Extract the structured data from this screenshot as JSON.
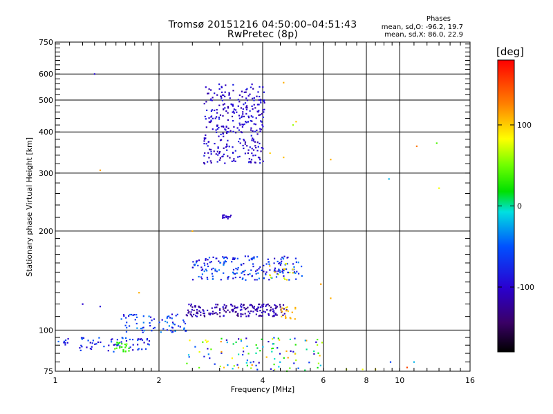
{
  "title_line1": "Tromsø 20151216 04:50:00–04:51:43",
  "title_line2": "RwPretec (8p)",
  "phases": {
    "title": "Phases",
    "line1": "mean, sd,O: -96.2, 19.7",
    "line2": "mean, sd,X:  86.0, 22.9"
  },
  "colorbar": {
    "title": "[deg]",
    "ticks": [
      {
        "label": "100",
        "value": 100
      },
      {
        "label": "0",
        "value": 0
      },
      {
        "label": "-100",
        "value": -100
      }
    ],
    "range": [
      -180,
      180
    ]
  },
  "chart_data": {
    "type": "scatter",
    "xlabel": "Frequency [MHz]",
    "ylabel": "Stationary phase Virtual Height [km]",
    "xscale": "log",
    "yscale": "log",
    "xlim": [
      1,
      16
    ],
    "ylim": [
      75,
      750
    ],
    "xticks": [
      {
        "label": "1",
        "value": 1
      },
      {
        "label": "2",
        "value": 2
      },
      {
        "label": "4",
        "value": 4
      },
      {
        "label": "6",
        "value": 6
      },
      {
        "label": "8",
        "value": 8
      },
      {
        "label": "10",
        "value": 10
      },
      {
        "label": "16",
        "value": 16
      }
    ],
    "yticks": [
      {
        "label": "75",
        "value": 75
      },
      {
        "label": "100",
        "value": 100
      },
      {
        "label": "200",
        "value": 200
      },
      {
        "label": "300",
        "value": 300
      },
      {
        "label": "400",
        "value": 400
      },
      {
        "label": "500",
        "value": 500
      },
      {
        "label": "600",
        "value": 600
      },
      {
        "label": "750",
        "value": 750
      }
    ],
    "grid": true,
    "color_variable": "phase [deg]",
    "clusters": [
      {
        "x_range": [
          2.7,
          4.05
        ],
        "y_range": [
          320,
          560
        ],
        "phase_range": [
          -120,
          -80
        ],
        "count": 320
      },
      {
        "x_range": [
          3.05,
          3.25
        ],
        "y_range": [
          218,
          224
        ],
        "phase_range": [
          -115,
          -95
        ],
        "count": 14
      },
      {
        "x_range": [
          2.5,
          5.2
        ],
        "y_range": [
          142,
          168
        ],
        "phase_range": [
          -110,
          -30
        ],
        "count": 190
      },
      {
        "x_range": [
          4.1,
          4.9
        ],
        "y_range": [
          142,
          160
        ],
        "phase_range": [
          60,
          110
        ],
        "count": 16
      },
      {
        "x_range": [
          2.4,
          4.7
        ],
        "y_range": [
          110,
          120
        ],
        "phase_range": [
          -140,
          -90
        ],
        "count": 180
      },
      {
        "x_range": [
          4.5,
          5.0
        ],
        "y_range": [
          108,
          118
        ],
        "phase_range": [
          90,
          115
        ],
        "count": 18
      },
      {
        "x_range": [
          1.55,
          2.4
        ],
        "y_range": [
          98,
          112
        ],
        "phase_range": [
          -100,
          -30
        ],
        "count": 70
      },
      {
        "x_range": [
          1.0,
          1.9
        ],
        "y_range": [
          86,
          95
        ],
        "phase_range": [
          -110,
          -40
        ],
        "count": 70
      },
      {
        "x_range": [
          1.48,
          1.65
        ],
        "y_range": [
          86,
          92
        ],
        "phase_range": [
          20,
          45
        ],
        "count": 20
      },
      {
        "x_range": [
          2.4,
          6.0
        ],
        "y_range": [
          75,
          95
        ],
        "phase_range": [
          -110,
          120
        ],
        "count": 110
      }
    ],
    "points": [
      {
        "x": 1.3,
        "y": 600,
        "phase": -95
      },
      {
        "x": 4.6,
        "y": 565,
        "phase": 110
      },
      {
        "x": 4.9,
        "y": 420,
        "phase": 60
      },
      {
        "x": 5.0,
        "y": 430,
        "phase": 100
      },
      {
        "x": 4.2,
        "y": 345,
        "phase": 100
      },
      {
        "x": 4.6,
        "y": 335,
        "phase": 105
      },
      {
        "x": 6.3,
        "y": 330,
        "phase": 110
      },
      {
        "x": 1.35,
        "y": 306,
        "phase": 115
      },
      {
        "x": 9.3,
        "y": 288,
        "phase": -20
      },
      {
        "x": 13.0,
        "y": 270,
        "phase": 80
      },
      {
        "x": 12.8,
        "y": 370,
        "phase": 40
      },
      {
        "x": 11.2,
        "y": 362,
        "phase": 130
      },
      {
        "x": 2.5,
        "y": 200,
        "phase": 110
      },
      {
        "x": 5.9,
        "y": 138,
        "phase": 115
      },
      {
        "x": 6.3,
        "y": 125,
        "phase": 110
      },
      {
        "x": 1.2,
        "y": 120,
        "phase": -100
      },
      {
        "x": 1.35,
        "y": 118,
        "phase": -95
      },
      {
        "x": 1.75,
        "y": 130,
        "phase": 110
      },
      {
        "x": 9.4,
        "y": 80,
        "phase": -60
      },
      {
        "x": 10.5,
        "y": 77,
        "phase": 150
      },
      {
        "x": 11.0,
        "y": 80,
        "phase": -20
      },
      {
        "x": 7.0,
        "y": 76,
        "phase": 70
      },
      {
        "x": 7.8,
        "y": 76,
        "phase": 80
      },
      {
        "x": 8.5,
        "y": 76,
        "phase": 90
      }
    ]
  }
}
